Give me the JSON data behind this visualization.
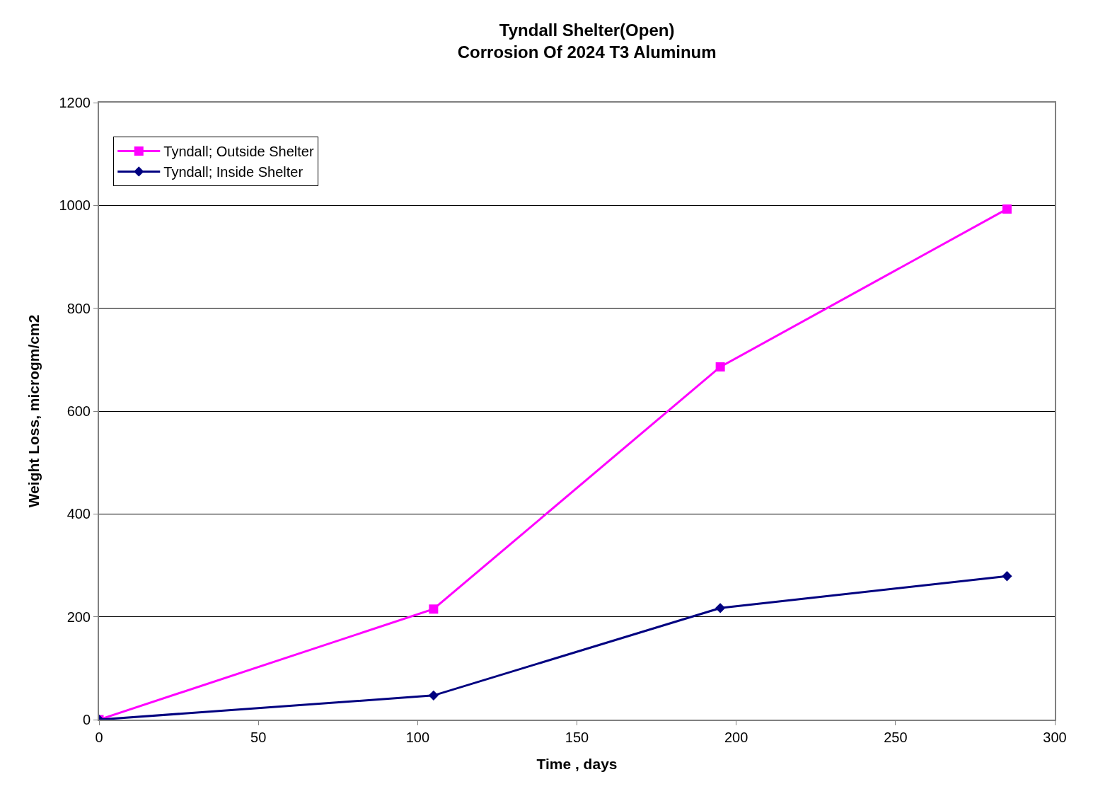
{
  "chart_data": {
    "type": "line",
    "title": "Tyndall Shelter(Open)\nCorrosion Of 2024 T3 Aluminum",
    "xlabel": "Time , days",
    "ylabel": "Weight Loss, microgm/cm2",
    "x": [
      0,
      105,
      195,
      285
    ],
    "series": [
      {
        "name": "Tyndall; Outside Shelter",
        "color": "#ff00ff",
        "marker": "square",
        "values": [
          0,
          215,
          686,
          993
        ]
      },
      {
        "name": "Tyndall; Inside Shelter",
        "color": "#000080",
        "marker": "diamond",
        "values": [
          0,
          47,
          217,
          279
        ]
      }
    ],
    "xlim": [
      0,
      300
    ],
    "xticks": [
      0,
      50,
      100,
      150,
      200,
      250,
      300
    ],
    "ylim": [
      0,
      1200
    ],
    "yticks": [
      0,
      200,
      400,
      600,
      800,
      1000,
      1200
    ],
    "grid": "y",
    "legend": "top left",
    "line_style": "solid"
  }
}
